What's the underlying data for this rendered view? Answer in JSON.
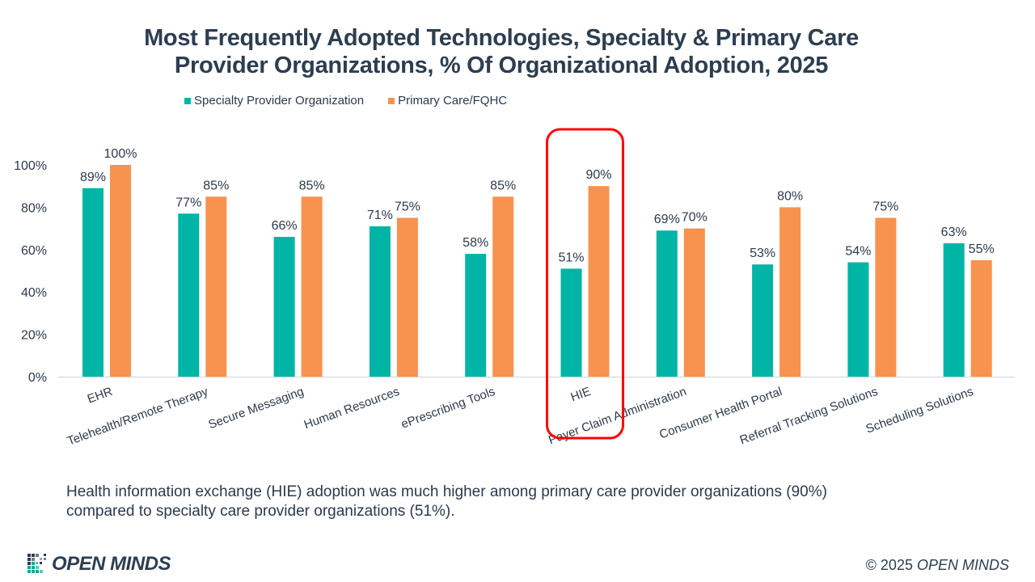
{
  "slide": {
    "title_line1": "Most Frequently Adopted Technologies, Specialty & Primary Care",
    "title_line2": "Provider Organizations, % Of Organizational Adoption, 2025",
    "caption_line1": "Health information exchange (HIE) adoption was much higher among primary care provider organizations (90%)",
    "caption_line2": "compared to  specialty care provider organizations (51%).",
    "logo_text": "OPEN MINDS",
    "copyright_prefix": "© 2025",
    "copyright_brand": "OPEN MINDS",
    "highlight_category": "HIE",
    "highlight_color": "#ff0000"
  },
  "chart_data": {
    "type": "bar",
    "title": "Most Frequently Adopted Technologies, Specialty & Primary Care Provider Organizations, % Of Organizational Adoption, 2025",
    "xlabel": "",
    "ylabel": "",
    "ylim": [
      0,
      100
    ],
    "yticks": [
      0,
      20,
      40,
      60,
      80,
      100
    ],
    "ytick_labels": [
      "0%",
      "20%",
      "40%",
      "60%",
      "80%",
      "100%"
    ],
    "grid": false,
    "legend_position": "top-left",
    "categories": [
      "EHR",
      "Telehealth/Remote Therapy",
      "Secure Messaging",
      "Human Resources",
      "ePrescribing Tools",
      "HIE",
      "Payer Claim Administration",
      "Consumer Health Portal",
      "Referral Tracking Solutions",
      "Scheduling Solutions"
    ],
    "series": [
      {
        "name": "Specialty Provider Organization",
        "color": "#00b5a5",
        "values": [
          89,
          77,
          66,
          71,
          58,
          51,
          69,
          53,
          54,
          63
        ],
        "labels": [
          "89%",
          "77%",
          "66%",
          "71%",
          "58%",
          "51%",
          "69%",
          "53%",
          "54%",
          "63%"
        ]
      },
      {
        "name": "Primary Care/FQHC",
        "color": "#f7924f",
        "values": [
          100,
          85,
          85,
          75,
          85,
          90,
          70,
          80,
          75,
          55
        ],
        "labels": [
          "100%",
          "85%",
          "85%",
          "75%",
          "85%",
          "90%",
          "70%",
          "80%",
          "75%",
          "55%"
        ]
      }
    ]
  }
}
